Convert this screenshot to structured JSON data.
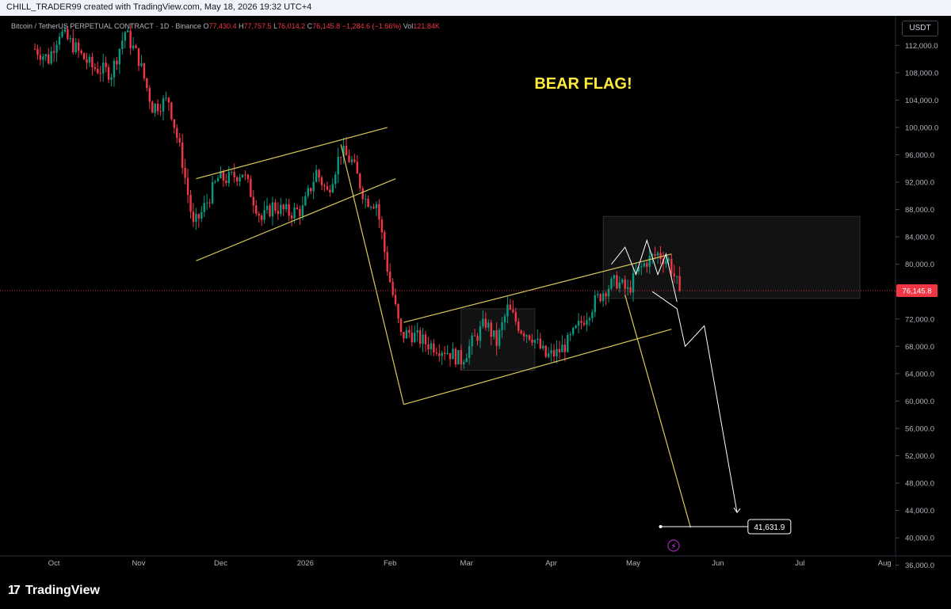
{
  "header": {
    "attribution": "CHILL_TRADER99 created with TradingView.com, May 18, 2026 19:32 UTC+4"
  },
  "symbol": {
    "name": "Bitcoin / TetherUS PERPETUAL CONTRACT · 1D · Binance",
    "o_label": "O",
    "open": "77,430.4",
    "h_label": "H",
    "high": "77,757.5",
    "l_label": "L",
    "low": "76,014.2",
    "c_label": "C",
    "close": "76,145.8",
    "change": "−1,284.6 (−1.66%)",
    "vol_label": "Vol",
    "volume": "121.84K"
  },
  "currency_button": "USDT",
  "annotation": "BEAR FLAG!",
  "target_label": "41,631.9",
  "logo_text": "TradingView",
  "colors": {
    "up": "#089981",
    "down": "#f23645",
    "pattern": "#d8c95a",
    "path": "#ffffff",
    "price_tag": "#f23645",
    "annotation": "#ffeb3b"
  },
  "chart_data": {
    "type": "candlestick",
    "yaxis": {
      "ticks": [
        112000,
        108000,
        104000,
        100000,
        96000,
        92000,
        88000,
        84000,
        80000,
        76000,
        72000,
        68000,
        64000,
        60000,
        56000,
        52000,
        48000,
        44000,
        40000,
        36000
      ],
      "tick_labels": [
        "112,000.0",
        "108,000.0",
        "104,000.0",
        "100,000.0",
        "96,000.0",
        "92,000.0",
        "88,000.0",
        "84,000.0",
        "80,000.0",
        "76,000.0",
        "72,000.0",
        "68,000.0",
        "64,000.0",
        "60,000.0",
        "56,000.0",
        "52,000.0",
        "48,000.0",
        "44,000.0",
        "40,000.0",
        "36,000.0"
      ],
      "range": [
        35500,
        114000
      ],
      "position": "right"
    },
    "xaxis": {
      "labels": [
        "Oct",
        "Nov",
        "Dec",
        "2026",
        "Feb",
        "Mar",
        "Apr",
        "May",
        "Jun",
        "Jul",
        "Aug"
      ],
      "dates": [
        "2025-10-01",
        "2025-11-01",
        "2025-12-01",
        "2026-01-01",
        "2026-02-01",
        "2026-03-01",
        "2026-04-01",
        "2026-05-01",
        "2026-06-01",
        "2026-07-01",
        "2026-08-01"
      ],
      "range": [
        "2025-09-24",
        "2026-08-05"
      ]
    },
    "last_price": 76145.8,
    "last_price_label": "76,145.8",
    "anchors": [
      [
        "2025-09-24",
        111500
      ],
      [
        "2025-09-29",
        110000
      ],
      [
        "2025-10-03",
        114000
      ],
      [
        "2025-10-08",
        112000
      ],
      [
        "2025-10-11",
        110500
      ],
      [
        "2025-10-15",
        108800
      ],
      [
        "2025-10-22",
        108000
      ],
      [
        "2025-10-27",
        114000
      ],
      [
        "2025-11-01",
        110000
      ],
      [
        "2025-11-06",
        103000
      ],
      [
        "2025-11-12",
        104000
      ],
      [
        "2025-11-17",
        95000
      ],
      [
        "2025-11-21",
        85500
      ],
      [
        "2025-11-24",
        87500
      ],
      [
        "2025-11-30",
        92500
      ],
      [
        "2025-12-04",
        92500
      ],
      [
        "2025-12-09",
        93500
      ],
      [
        "2025-12-12",
        90500
      ],
      [
        "2025-12-16",
        86500
      ],
      [
        "2025-12-20",
        88500
      ],
      [
        "2025-12-26",
        87500
      ],
      [
        "2025-12-31",
        88000
      ],
      [
        "2026-01-05",
        93500
      ],
      [
        "2026-01-09",
        90500
      ],
      [
        "2026-01-14",
        96500
      ],
      [
        "2026-01-18",
        95000
      ],
      [
        "2026-01-23",
        89500
      ],
      [
        "2026-01-27",
        89000
      ],
      [
        "2026-01-31",
        79500
      ],
      [
        "2026-02-05",
        69500
      ],
      [
        "2026-02-08",
        70000
      ],
      [
        "2026-02-14",
        68500
      ],
      [
        "2026-02-21",
        67500
      ],
      [
        "2026-02-27",
        66000
      ],
      [
        "2026-03-03",
        68500
      ],
      [
        "2026-03-08",
        71500
      ],
      [
        "2026-03-12",
        68500
      ],
      [
        "2026-03-16",
        73500
      ],
      [
        "2026-03-21",
        70500
      ],
      [
        "2026-03-25",
        69500
      ],
      [
        "2026-03-30",
        66500
      ],
      [
        "2026-04-03",
        67000
      ],
      [
        "2026-04-07",
        68500
      ],
      [
        "2026-04-12",
        71500
      ],
      [
        "2026-04-17",
        74500
      ],
      [
        "2026-04-21",
        76500
      ],
      [
        "2026-04-25",
        77500
      ],
      [
        "2026-04-29",
        76000
      ],
      [
        "2026-05-02",
        78500
      ],
      [
        "2026-05-06",
        80500
      ],
      [
        "2026-05-10",
        81500
      ],
      [
        "2026-05-14",
        80500
      ],
      [
        "2026-05-18",
        76145.8
      ]
    ],
    "pattern_lines": [
      {
        "name": "wedge-upper",
        "points": [
          [
            "2025-11-22",
            92500
          ],
          [
            "2026-01-31",
            100000
          ]
        ]
      },
      {
        "name": "wedge-lower",
        "points": [
          [
            "2025-11-22",
            80500
          ],
          [
            "2026-02-03",
            92500
          ]
        ]
      },
      {
        "name": "pole",
        "points": [
          [
            "2026-01-14",
            97500
          ],
          [
            "2026-02-06",
            59500
          ]
        ]
      },
      {
        "name": "flag-upper",
        "points": [
          [
            "2026-02-06",
            71500
          ],
          [
            "2026-05-15",
            81500
          ]
        ]
      },
      {
        "name": "flag-lower",
        "points": [
          [
            "2026-02-06",
            59500
          ],
          [
            "2026-05-15",
            70500
          ]
        ]
      },
      {
        "name": "projection",
        "points": [
          [
            "2026-04-28",
            75500
          ],
          [
            "2026-05-22",
            41500
          ]
        ]
      }
    ],
    "projected_path": [
      [
        "2026-05-08",
        76000
      ],
      [
        "2026-05-17",
        73500
      ],
      [
        "2026-05-20",
        68000
      ],
      [
        "2026-05-27",
        71000
      ],
      [
        "2026-06-08",
        43700
      ]
    ],
    "path_wiggle": [
      [
        "2026-04-23",
        80000
      ],
      [
        "2026-04-28",
        82500
      ],
      [
        "2026-05-02",
        78500
      ],
      [
        "2026-05-06",
        83500
      ],
      [
        "2026-05-10",
        78500
      ],
      [
        "2026-05-13",
        81500
      ],
      [
        "2026-05-17",
        74500
      ]
    ],
    "target": {
      "value": 41631.9,
      "from": "2026-05-11",
      "to": "2026-06-12"
    },
    "zones": [
      {
        "name": "resistance-zone",
        "from": "2026-04-20",
        "to": "2026-07-23",
        "low": 75000,
        "high": 87000
      },
      {
        "name": "consolidation-zone",
        "from": "2026-02-27",
        "to": "2026-03-26",
        "low": 64500,
        "high": 73500
      }
    ]
  }
}
